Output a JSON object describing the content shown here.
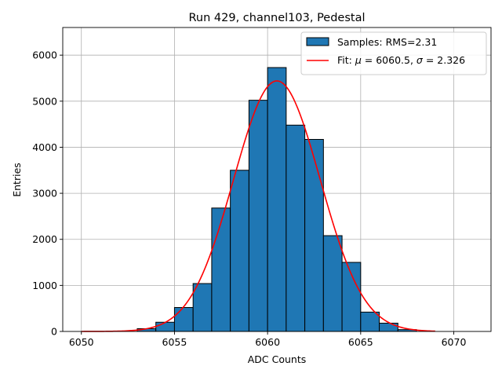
{
  "chart_data": {
    "type": "bar",
    "title": "Run 429, channel103, Pedestal",
    "xlabel": "ADC Counts",
    "ylabel": "Entries",
    "xlim": [
      6049,
      6072
    ],
    "ylim": [
      0,
      6600
    ],
    "grid": true,
    "legend_position": "top-right",
    "x_ticks": [
      6050,
      6055,
      6060,
      6065,
      6070
    ],
    "y_ticks": [
      0,
      1000,
      2000,
      3000,
      4000,
      5000,
      6000
    ],
    "histogram": {
      "name": "Samples: RMS=2.31",
      "color": "#1f77b4",
      "edge_color": "#000000",
      "bin_edges": [
        6053,
        6054,
        6055,
        6056,
        6057,
        6058,
        6059,
        6060,
        6061,
        6062,
        6063,
        6064,
        6065,
        6066,
        6067,
        6068
      ],
      "values": [
        60,
        200,
        520,
        1040,
        2680,
        3500,
        5020,
        5730,
        4480,
        4170,
        2080,
        1500,
        420,
        180,
        40
      ]
    },
    "fit": {
      "name": "Fit: $\\mu$ = 6060.5, $\\sigma$ = 2.326",
      "label_main": "Fit: ",
      "mu_symbol": "μ",
      "mu_text": " = 6060.5, ",
      "sigma_symbol": "σ",
      "sigma_text": " = 2.326",
      "color": "#ff0000",
      "mu": 6060.5,
      "sigma": 2.326,
      "amplitude": 5440,
      "x_range": [
        6050,
        6069
      ]
    }
  }
}
